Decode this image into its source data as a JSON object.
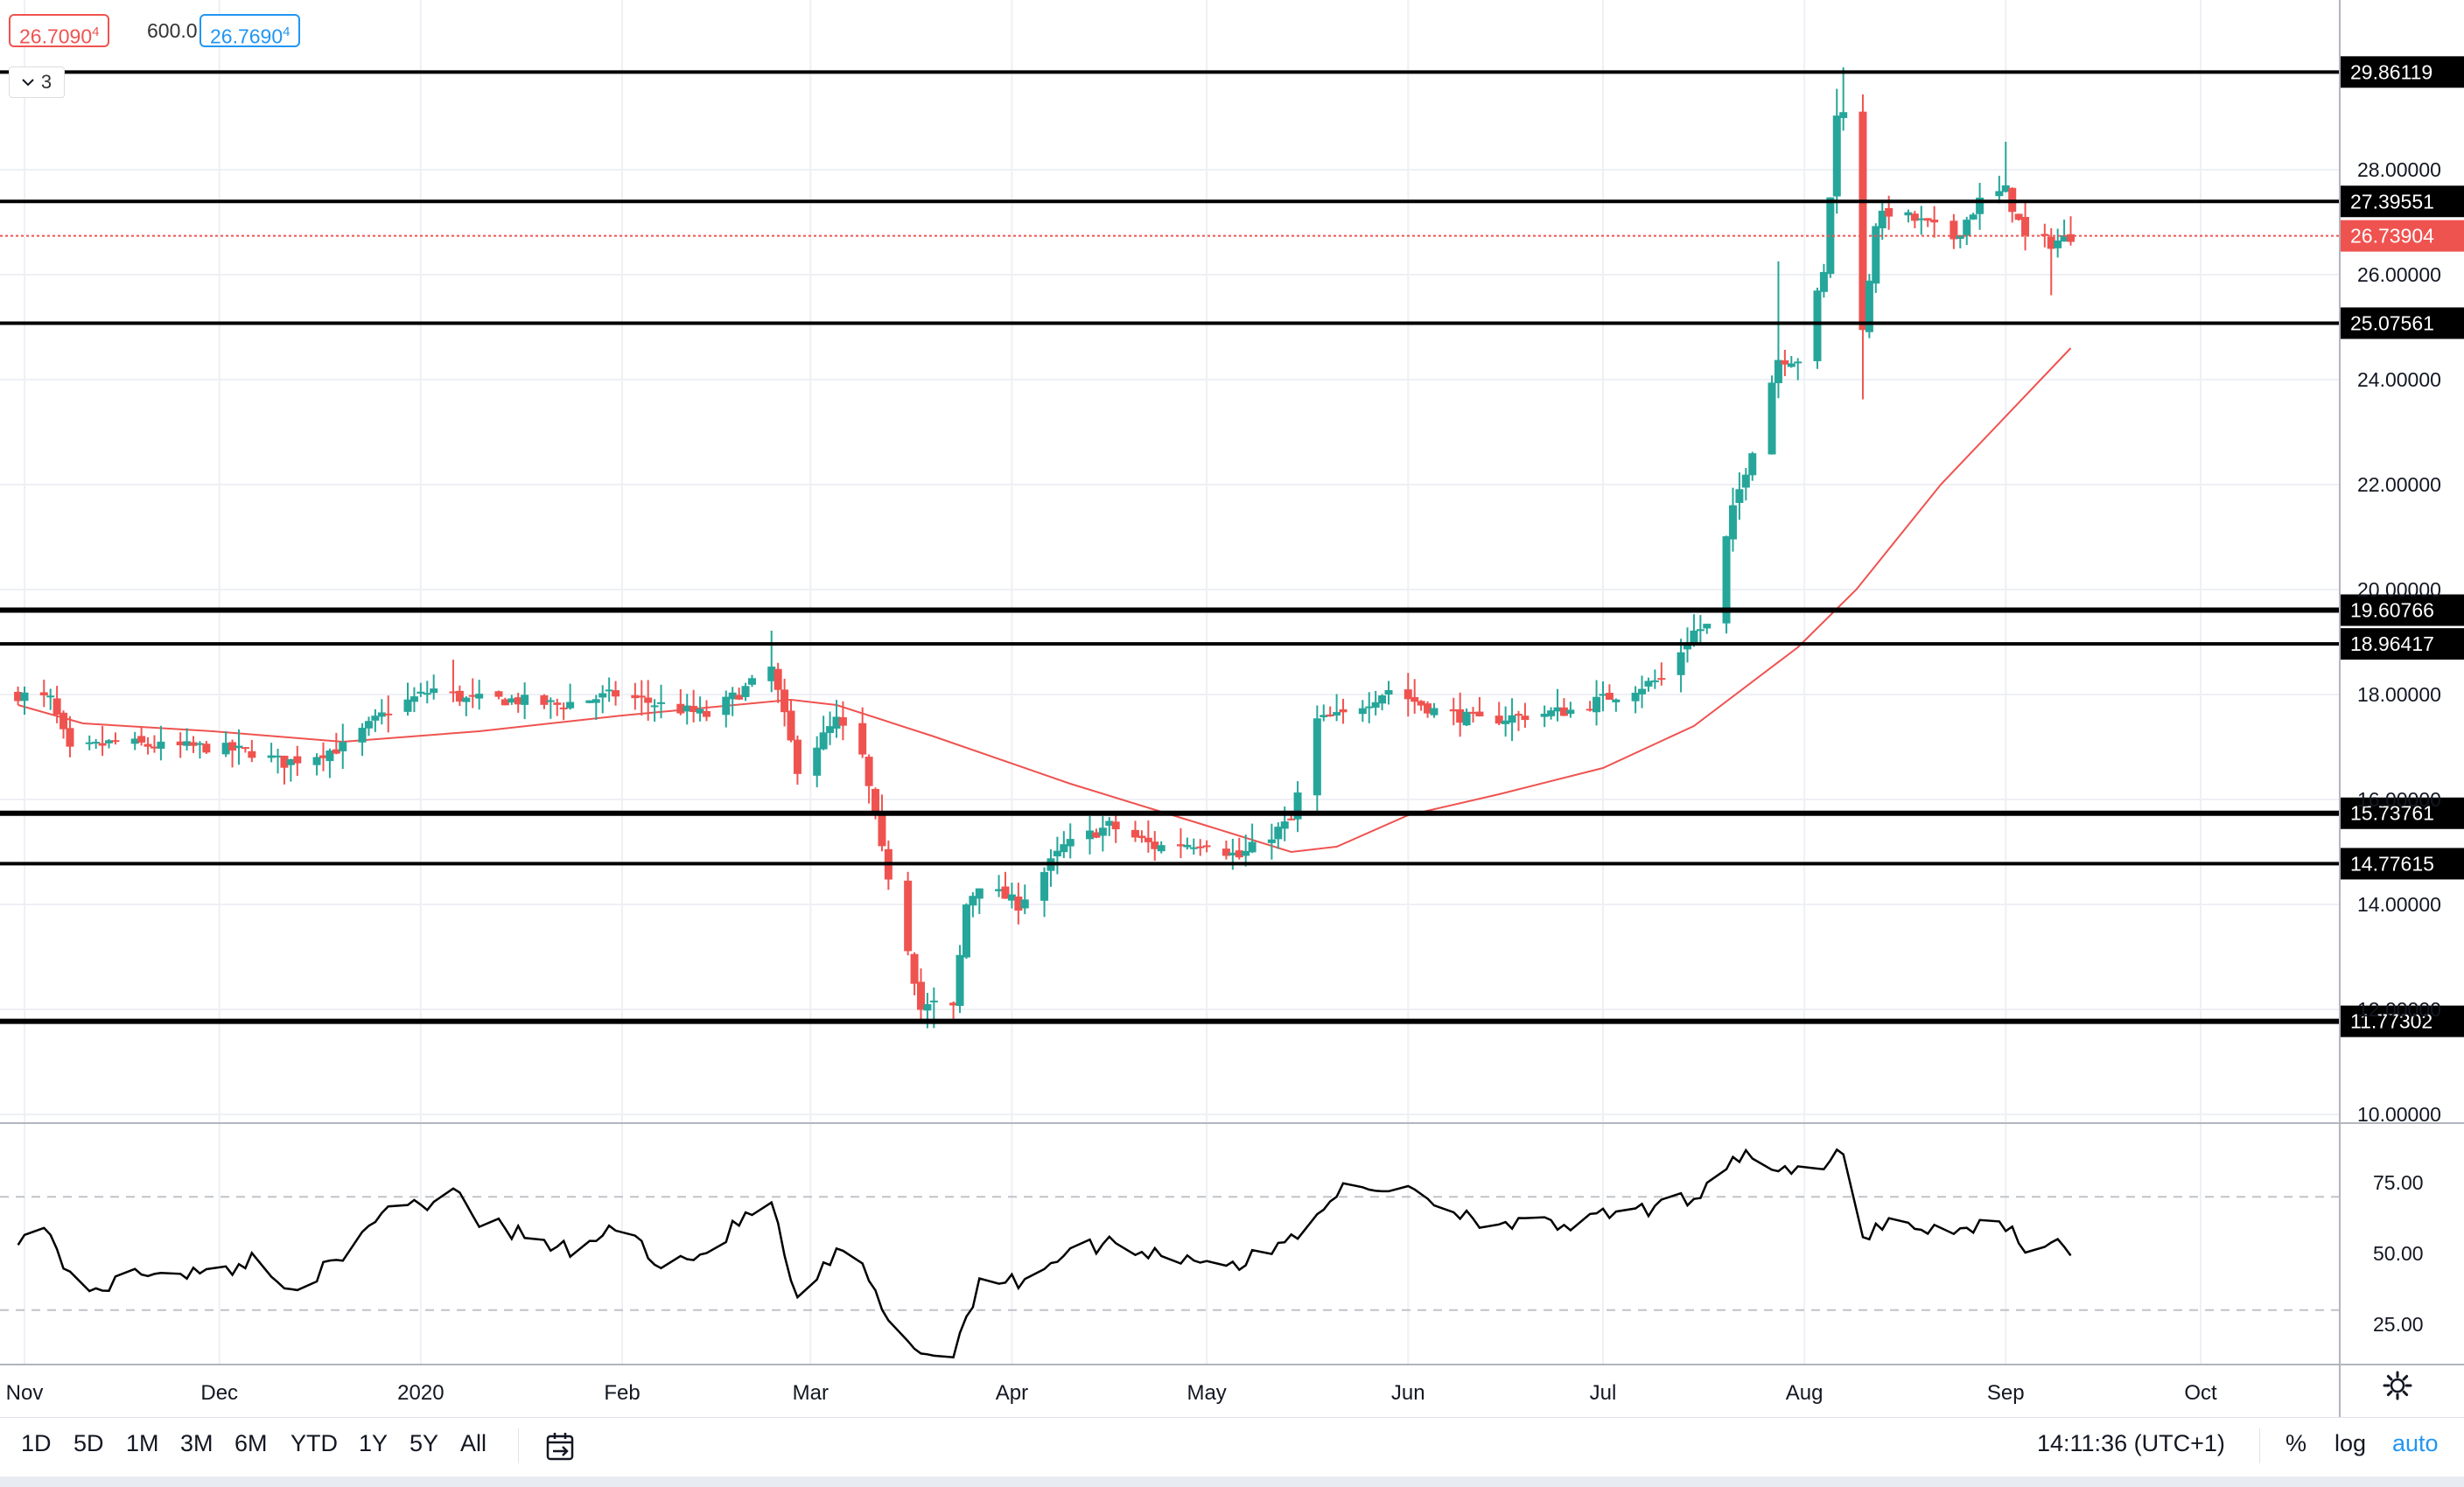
{
  "ohlc": {
    "open": "26.7090",
    "open_sup": "4",
    "volume": "600.0",
    "close": "26.7690",
    "close_sup": "4"
  },
  "indicator_toggle": {
    "count": "3"
  },
  "price_axis": {
    "ticks": [
      "28.00000",
      "26.00000",
      "24.00000",
      "22.00000",
      "20.00000",
      "18.00000",
      "16.00000",
      "14.00000",
      "12.00000",
      "10.00000"
    ],
    "ticks_hidden": [
      "20.00000",
      "16.00000",
      "12.00000"
    ]
  },
  "horizontal_levels": [
    "29.86119",
    "27.39551",
    "25.07561",
    "19.60766",
    "18.96417",
    "15.73761",
    "14.77615",
    "11.77302"
  ],
  "last_price": {
    "label": "26.73904",
    "value": 26.73904,
    "color": "#ef5350"
  },
  "rsi_axis": {
    "ticks": [
      "75.00",
      "50.00",
      "25.00"
    ]
  },
  "time_axis": {
    "labels": [
      "Nov",
      "Dec",
      "2020",
      "Feb",
      "Mar",
      "Apr",
      "May",
      "Jun",
      "Jul",
      "Aug",
      "Sep",
      "Oct"
    ]
  },
  "timeframes": [
    "1D",
    "5D",
    "1M",
    "3M",
    "6M",
    "YTD",
    "1Y",
    "5Y",
    "All"
  ],
  "status": {
    "time": "14:11:36 (UTC+1)",
    "percent": "%",
    "log": "log",
    "auto": "auto"
  },
  "colors": {
    "up": "#26a69a",
    "down": "#ef5350",
    "ma": "#ef5350",
    "level": "#000000",
    "rsi": "#000000",
    "grid": "#eef0f4"
  },
  "icons": [
    "chevron-down-icon",
    "date-range-icon",
    "gear-icon"
  ],
  "chart_data": {
    "type": "candlestick",
    "period": "daily",
    "start": "2019-10-31",
    "end": "2020-09-11",
    "ylim": [
      9.5,
      30.9
    ],
    "price_anchors": [
      [
        "2019-10-31",
        18.0
      ],
      [
        "2019-11-05",
        17.9
      ],
      [
        "2019-11-08",
        16.9
      ],
      [
        "2019-11-15",
        17.1
      ],
      [
        "2019-11-22",
        17.0
      ],
      [
        "2019-11-29",
        17.0
      ],
      [
        "2019-12-06",
        16.9
      ],
      [
        "2019-12-11",
        16.7
      ],
      [
        "2019-12-20",
        17.0
      ],
      [
        "2019-12-27",
        17.7
      ],
      [
        "2020-01-03",
        18.1
      ],
      [
        "2020-01-08",
        17.9
      ],
      [
        "2020-01-15",
        17.9
      ],
      [
        "2020-01-22",
        17.8
      ],
      [
        "2020-01-31",
        18.0
      ],
      [
        "2020-02-07",
        17.8
      ],
      [
        "2020-02-14",
        17.6
      ],
      [
        "2020-02-21",
        18.2
      ],
      [
        "2020-02-24",
        18.5
      ],
      [
        "2020-02-28",
        16.6
      ],
      [
        "2020-03-05",
        17.5
      ],
      [
        "2020-03-09",
        16.8
      ],
      [
        "2020-03-12",
        15.0
      ],
      [
        "2020-03-16",
        13.2
      ],
      [
        "2020-03-18",
        12.0
      ],
      [
        "2020-03-20",
        12.1
      ],
      [
        "2020-03-23",
        12.0
      ],
      [
        "2020-03-25",
        14.0
      ],
      [
        "2020-03-27",
        14.4
      ],
      [
        "2020-04-02",
        14.0
      ],
      [
        "2020-04-09",
        15.1
      ],
      [
        "2020-04-16",
        15.5
      ],
      [
        "2020-04-23",
        15.1
      ],
      [
        "2020-05-01",
        15.2
      ],
      [
        "2020-05-06",
        14.9
      ],
      [
        "2020-05-14",
        15.6
      ],
      [
        "2020-05-18",
        17.5
      ],
      [
        "2020-05-22",
        17.6
      ],
      [
        "2020-05-29",
        18.1
      ],
      [
        "2020-06-05",
        17.7
      ],
      [
        "2020-06-12",
        17.5
      ],
      [
        "2020-06-19",
        17.6
      ],
      [
        "2020-06-26",
        17.7
      ],
      [
        "2020-07-03",
        18.0
      ],
      [
        "2020-07-10",
        18.3
      ],
      [
        "2020-07-15",
        19.2
      ],
      [
        "2020-07-17",
        19.3
      ],
      [
        "2020-07-21",
        21.5
      ],
      [
        "2020-07-24",
        22.7
      ],
      [
        "2020-07-28",
        24.4
      ],
      [
        "2020-07-31",
        24.4
      ],
      [
        "2020-08-04",
        26.0
      ],
      [
        "2020-08-06",
        29.0
      ],
      [
        "2020-08-07",
        29.2
      ],
      [
        "2020-08-10",
        24.9
      ],
      [
        "2020-08-12",
        27.0
      ],
      [
        "2020-08-14",
        27.2
      ],
      [
        "2020-08-19",
        27.0
      ],
      [
        "2020-08-24",
        26.7
      ],
      [
        "2020-08-28",
        27.4
      ],
      [
        "2020-09-01",
        27.6
      ],
      [
        "2020-09-04",
        26.7
      ],
      [
        "2020-09-08",
        26.6
      ],
      [
        "2020-09-11",
        26.74
      ]
    ],
    "moving_average": {
      "period": 50,
      "points": [
        [
          "2019-10-31",
          17.8
        ],
        [
          "2019-11-10",
          17.45
        ],
        [
          "2019-11-30",
          17.3
        ],
        [
          "2019-12-20",
          17.1
        ],
        [
          "2020-01-10",
          17.3
        ],
        [
          "2020-02-01",
          17.6
        ],
        [
          "2020-02-27",
          17.9
        ],
        [
          "2020-03-05",
          17.8
        ],
        [
          "2020-03-20",
          17.2
        ],
        [
          "2020-04-10",
          16.3
        ],
        [
          "2020-05-01",
          15.5
        ],
        [
          "2020-05-14",
          15.0
        ],
        [
          "2020-05-21",
          15.1
        ],
        [
          "2020-06-01",
          15.7
        ],
        [
          "2020-06-15",
          16.1
        ],
        [
          "2020-07-01",
          16.6
        ],
        [
          "2020-07-15",
          17.4
        ],
        [
          "2020-07-31",
          18.9
        ],
        [
          "2020-08-09",
          20.0
        ],
        [
          "2020-08-22",
          22.0
        ],
        [
          "2020-09-11",
          24.6
        ]
      ]
    },
    "rsi": {
      "period": 14,
      "overbought": 70,
      "oversold": 30,
      "ylim": [
        5,
        95
      ],
      "points": [
        [
          "2019-10-31",
          56
        ],
        [
          "2019-11-05",
          58
        ],
        [
          "2019-11-09",
          35
        ],
        [
          "2019-11-15",
          40
        ],
        [
          "2019-11-22",
          45
        ],
        [
          "2019-11-30",
          42
        ],
        [
          "2019-12-06",
          48
        ],
        [
          "2019-12-11",
          38
        ],
        [
          "2019-12-20",
          47
        ],
        [
          "2019-12-27",
          68
        ],
        [
          "2020-01-03",
          68
        ],
        [
          "2020-01-06",
          75
        ],
        [
          "2020-01-10",
          62
        ],
        [
          "2020-01-18",
          55
        ],
        [
          "2020-01-25",
          50
        ],
        [
          "2020-01-31",
          60
        ],
        [
          "2020-02-07",
          47
        ],
        [
          "2020-02-14",
          50
        ],
        [
          "2020-02-21",
          65
        ],
        [
          "2020-02-24",
          67
        ],
        [
          "2020-02-28",
          32
        ],
        [
          "2020-03-05",
          50
        ],
        [
          "2020-03-09",
          45
        ],
        [
          "2020-03-12",
          30
        ],
        [
          "2020-03-18",
          15
        ],
        [
          "2020-03-20",
          13
        ],
        [
          "2020-03-23",
          16
        ],
        [
          "2020-03-27",
          40
        ],
        [
          "2020-04-02",
          40
        ],
        [
          "2020-04-09",
          50
        ],
        [
          "2020-04-16",
          54
        ],
        [
          "2020-04-23",
          50
        ],
        [
          "2020-05-01",
          48
        ],
        [
          "2020-05-06",
          46
        ],
        [
          "2020-05-14",
          55
        ],
        [
          "2020-05-21",
          72
        ],
        [
          "2020-05-28",
          72
        ],
        [
          "2020-06-01",
          75
        ],
        [
          "2020-06-05",
          68
        ],
        [
          "2020-06-12",
          62
        ],
        [
          "2020-06-19",
          60
        ],
        [
          "2020-06-26",
          60
        ],
        [
          "2020-07-03",
          64
        ],
        [
          "2020-07-10",
          66
        ],
        [
          "2020-07-15",
          70
        ],
        [
          "2020-07-21",
          84
        ],
        [
          "2020-07-24",
          85
        ],
        [
          "2020-07-28",
          80
        ],
        [
          "2020-07-31",
          78
        ],
        [
          "2020-08-04",
          80
        ],
        [
          "2020-08-06",
          84
        ],
        [
          "2020-08-07",
          85
        ],
        [
          "2020-08-10",
          56
        ],
        [
          "2020-08-14",
          62
        ],
        [
          "2020-08-19",
          59
        ],
        [
          "2020-08-24",
          57
        ],
        [
          "2020-08-28",
          61
        ],
        [
          "2020-09-01",
          60
        ],
        [
          "2020-09-04",
          53
        ],
        [
          "2020-09-11",
          52
        ]
      ]
    }
  }
}
